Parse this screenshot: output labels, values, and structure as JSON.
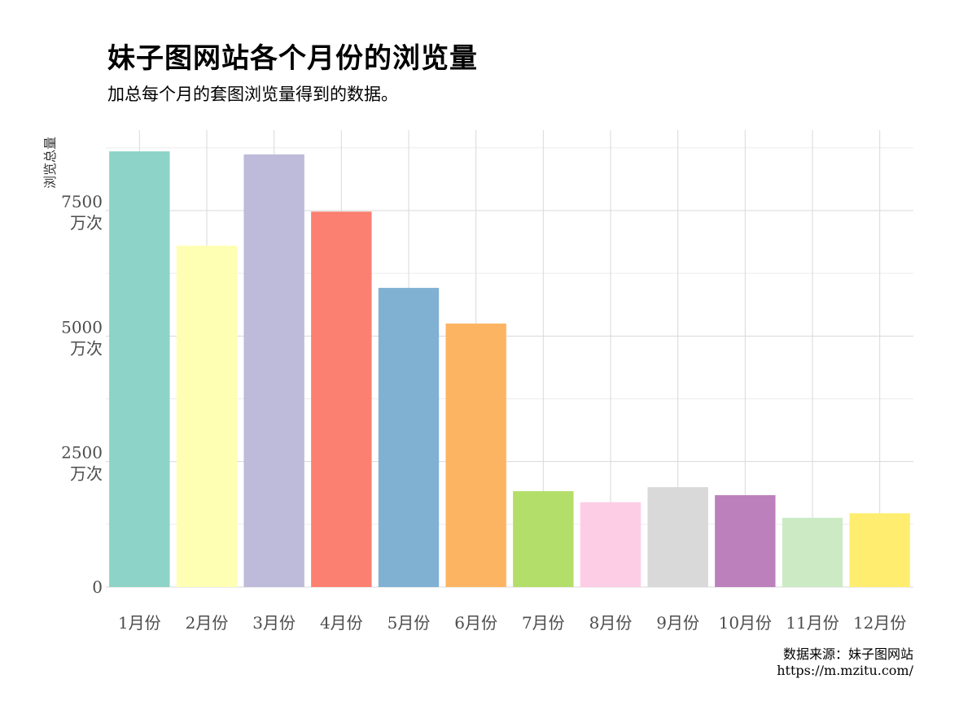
{
  "header": {
    "title": "妹子图网站各个月份的浏览量",
    "subtitle": "加总每个月的套图浏览量得到的数据。"
  },
  "caption": {
    "line1": "数据来源：妹子图网站",
    "line2": "https://m.mzitu.com/"
  },
  "chart_data": {
    "type": "bar",
    "title": "妹子图网站各个月份的浏览量",
    "subtitle": "加总每个月的套图浏览量得到的数据。",
    "xlabel": "",
    "ylabel": "浏览总量",
    "ylim": [
      0,
      8750
    ],
    "grid": true,
    "legend": "none",
    "categories": [
      "1月份",
      "2月份",
      "3月份",
      "4月份",
      "5月份",
      "6月份",
      "7月份",
      "8月份",
      "9月份",
      "10月份",
      "11月份",
      "12月份"
    ],
    "values": [
      8680,
      6800,
      8620,
      7480,
      5960,
      5250,
      1910,
      1690,
      1990,
      1830,
      1380,
      1470
    ],
    "colors": [
      "#8DD3C7",
      "#FFFFB3",
      "#BEBADA",
      "#FB8072",
      "#80B1D3",
      "#FDB462",
      "#B3DE69",
      "#FCCDE5",
      "#D9D9D9",
      "#BC80BD",
      "#CCEBC5",
      "#FFED6F"
    ],
    "y_ticks": [
      {
        "value": 0,
        "label": "0",
        "unit": ""
      },
      {
        "value": 2500,
        "label": "2500",
        "unit": "万次"
      },
      {
        "value": 5000,
        "label": "5000",
        "unit": "万次"
      },
      {
        "value": 7500,
        "label": "7500",
        "unit": "万次"
      }
    ]
  }
}
